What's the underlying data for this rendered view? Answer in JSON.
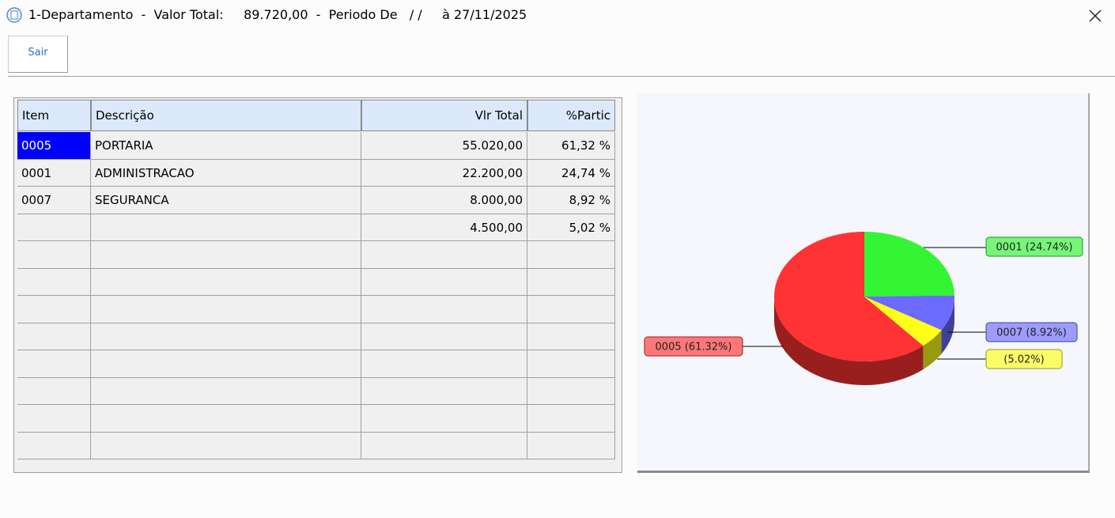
{
  "window": {
    "title": "1-Departamento  -  Valor Total:     89.720,00  -  Periodo De   / /     à 27/11/2025"
  },
  "toolbar": {
    "exit_button": "Sair"
  },
  "table": {
    "columns": [
      "Item",
      "Descrição",
      "Vlr Total",
      "%Partic"
    ],
    "rows": [
      [
        "0005",
        "PORTARIA",
        "55.020,00",
        "61,32 %"
      ],
      [
        "0001",
        "ADMINISTRACAO",
        "22.200,00",
        "24,74 %"
      ],
      [
        "0007",
        "SEGURANCA",
        "8.000,00",
        "8,92 %"
      ],
      [
        null,
        null,
        "4.500,00",
        "5,02 %"
      ]
    ]
  },
  "chart_data": {
    "type": "pie",
    "categories": [
      "0005",
      "0001",
      "0007",
      null
    ],
    "values": [
      61.32,
      24.74,
      8.92,
      5.02
    ],
    "value_labels": [
      "0005 (61.32%)",
      "0001 (24.74%)",
      "0007 (8.92%)",
      "(5.02%)"
    ],
    "colors": [
      "#ff3333",
      "#33f533",
      "#6b6bff",
      "#ffff1a"
    ]
  }
}
